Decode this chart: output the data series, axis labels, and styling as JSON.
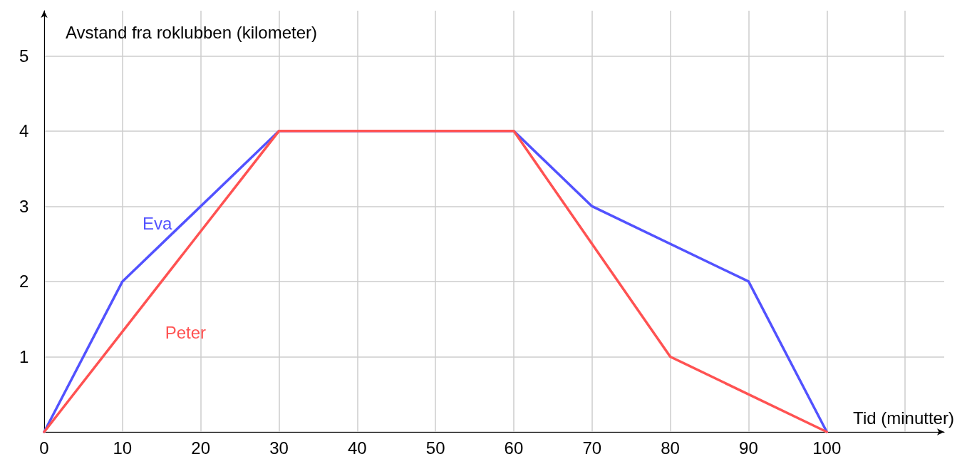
{
  "chart_data": {
    "type": "line",
    "xlabel": "Tid (minutter)",
    "ylabel": "Avstand fra roklubben (kilometer)",
    "xlim": [
      0,
      115
    ],
    "xticks": [
      0,
      10,
      20,
      30,
      40,
      50,
      60,
      70,
      80,
      90,
      100,
      {
        "value": 110,
        "label": null
      }
    ],
    "ylim": [
      0,
      5.6
    ],
    "yticks": [
      {
        "value": 0,
        "label": null
      },
      1,
      2,
      3,
      4,
      5
    ],
    "grid": true,
    "legend": false,
    "marker": "none",
    "line_style": "solid",
    "series": [
      {
        "name": "Eva",
        "color": "#5252ff",
        "x": [
          0,
          10,
          30,
          60,
          70,
          90,
          100
        ],
        "values": [
          0,
          2,
          4,
          4,
          3,
          2,
          0
        ]
      },
      {
        "name": "Peter",
        "color": "#ff5252",
        "x": [
          0,
          30,
          60,
          80,
          100
        ],
        "values": [
          0,
          4,
          4,
          1,
          0
        ]
      }
    ]
  }
}
